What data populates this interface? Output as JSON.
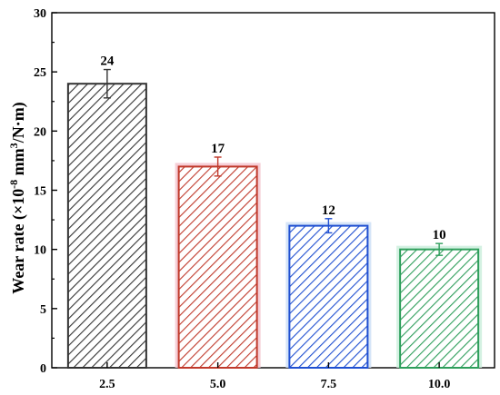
{
  "chart_data": {
    "type": "bar",
    "categories": [
      "2.5",
      "5.0",
      "7.5",
      "10.0"
    ],
    "values": [
      24,
      17,
      12,
      10
    ],
    "errors": [
      1.2,
      0.8,
      0.6,
      0.5
    ],
    "data_labels": [
      "24",
      "17",
      "12",
      "10"
    ],
    "ylabel": {
      "main": "Wear rate (×10",
      "exp1": "-8",
      "mid": " mm",
      "exp2": "3",
      "tail": "/N·m)"
    },
    "xlabel": "",
    "ylim": [
      0,
      30
    ],
    "yticks": [
      0,
      5,
      10,
      15,
      20,
      25,
      30
    ],
    "grid": false,
    "bar_pattern": "diagonal-hatch",
    "colors": [
      "#333333",
      "#c0392b",
      "#1f4fd1",
      "#2e9e5b"
    ],
    "glow_colors": [
      null,
      "#f4c6cf",
      "#cfe0f7",
      "#cdeedd"
    ]
  }
}
